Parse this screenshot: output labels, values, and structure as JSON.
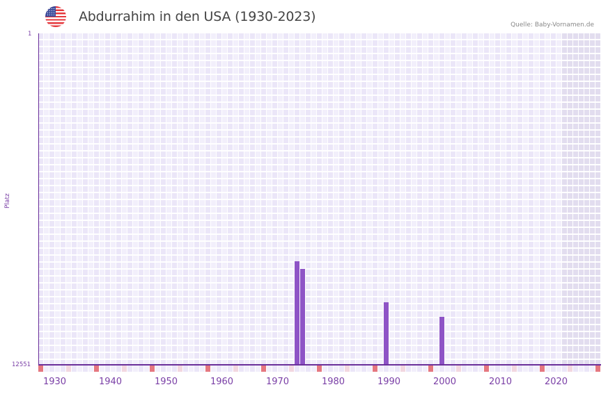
{
  "header": {
    "flag_icon": "us-flag-icon",
    "title": "Abdurrahim in den USA (1930-2023)",
    "source": "Quelle: Baby-Vornamen.de"
  },
  "colors": {
    "bar": "#8e54c6",
    "axis": "#6a2f9a",
    "label": "#7a3fa6",
    "cell_light": "#f2effb",
    "cell_dark": "#ebe6f8",
    "future_cell": "#e2ddef",
    "decade_marker": "#e57780",
    "half_decade_marker": "#f2d7e0"
  },
  "chart_data": {
    "type": "bar",
    "title": "Abdurrahim in den USA (1930-2023)",
    "xlabel": "",
    "ylabel": "Platz",
    "y_axis_inverted": true,
    "ylim": [
      1,
      12551
    ],
    "y_ticks": [
      "1",
      "12551"
    ],
    "x_range": [
      1928,
      2028
    ],
    "x_ticks": [
      1930,
      1940,
      1950,
      1960,
      1970,
      1980,
      1990,
      2000,
      2010,
      2020
    ],
    "grid": true,
    "legend": null,
    "shaded_region": [
      2022,
      2028
    ],
    "categories": [
      1974,
      1975,
      1990,
      2000
    ],
    "values": [
      8630,
      8920,
      10180,
      10735
    ],
    "value_meaning": "Rank (Platz); lower is more popular, bars drawn from bottom rank 12551"
  },
  "axis": {
    "y_top_label": "1",
    "y_bottom_label": "12551",
    "y_title": "Platz",
    "x_labels": [
      "1930",
      "1940",
      "1950",
      "1960",
      "1970",
      "1980",
      "1990",
      "2000",
      "2010",
      "2020"
    ]
  }
}
